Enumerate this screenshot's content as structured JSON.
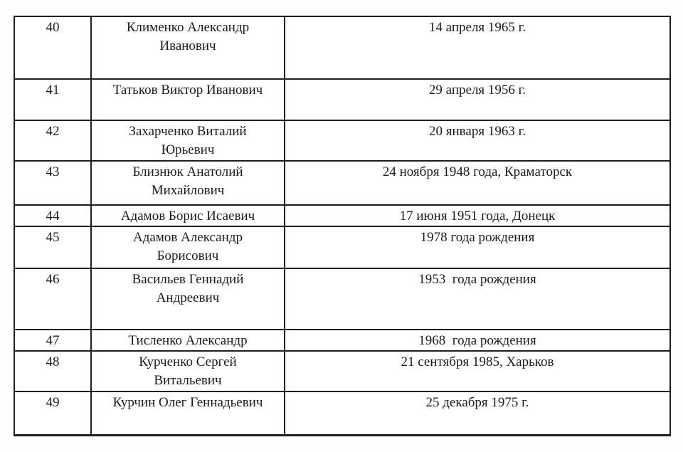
{
  "document": {
    "language": "ru",
    "type": "numbered-person-list"
  },
  "table": {
    "columns": [
      "number",
      "name",
      "birthdate"
    ],
    "rows": [
      {
        "num": "40",
        "name": "Клименко Александр Иванович",
        "date": "14 апреля 1965 г."
      },
      {
        "num": "41",
        "name": "Татьков Виктор Иванович",
        "date": "29 апреля 1956 г."
      },
      {
        "num": "42",
        "name": "Захарченко Виталий Юрьевич",
        "date": "20 января 1963 г."
      },
      {
        "num": "43",
        "name": "Близнюк Анатолий Михайлович",
        "date": "24 ноября 1948 года, Краматорск"
      },
      {
        "num": "44",
        "name": "Адамов Борис Исаевич",
        "date": "17 июня 1951 года, Донецк"
      },
      {
        "num": "45",
        "name": "Адамов Александр Борисович",
        "date": "1978 года рождения"
      },
      {
        "num": "46",
        "name": "Васильев Геннадий Андреевич",
        "date": "1953  года рождения"
      },
      {
        "num": "47",
        "name": "Тисленко Александр",
        "date": "1968  года рождения"
      },
      {
        "num": "48",
        "name": "Курченко Сергей Витальевич",
        "date": "21 сентября 1985, Харьков"
      },
      {
        "num": "49",
        "name": "Курчин Олег Геннадьевич",
        "date": "25 декабря 1975 г."
      }
    ],
    "colors": {
      "border": "#1f1f1f",
      "text": "#1b1b1b",
      "background": "#ffffff"
    }
  }
}
